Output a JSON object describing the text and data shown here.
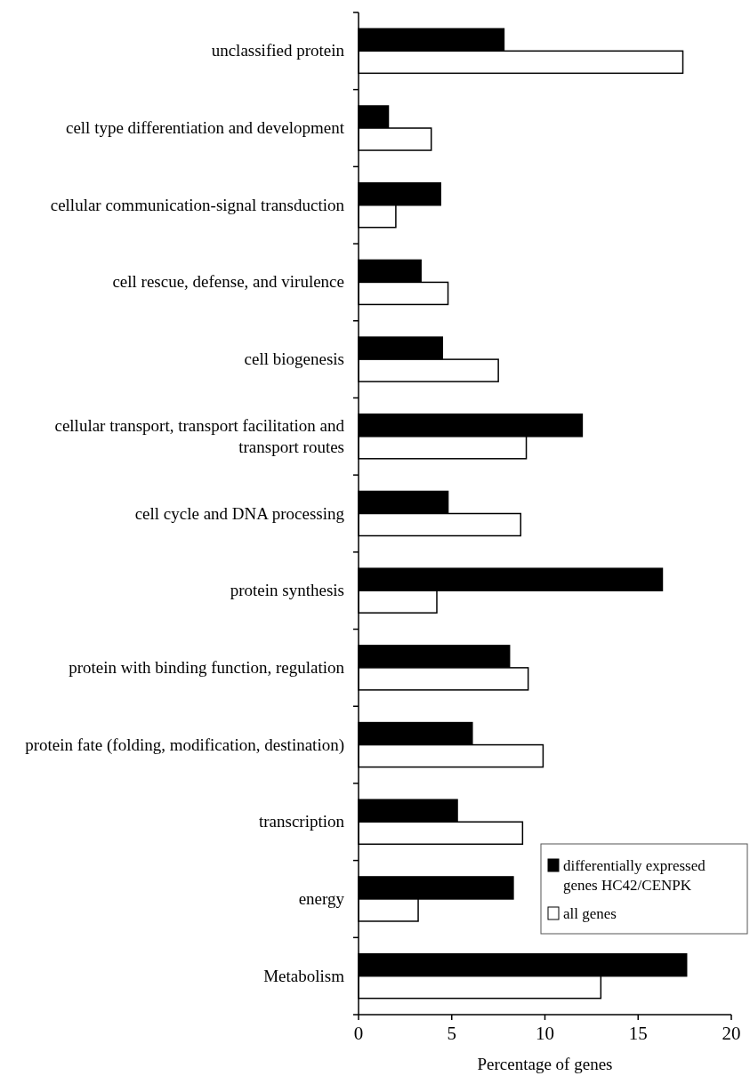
{
  "chart_data": {
    "type": "bar",
    "orientation": "horizontal",
    "xlabel": "Percentage of  genes",
    "categories": [
      "unclassified protein",
      "cell type differentiation and development",
      "cellular communication-signal transduction",
      "cell rescue, defense, and virulence",
      "cell biogenesis",
      "cellular transport, transport facilitation and transport routes",
      "cell cycle and DNA processing",
      "protein synthesis",
      "protein with binding function, regulation",
      "protein fate (folding, modification, destination)",
      "transcription",
      "energy",
      "Metabolism"
    ],
    "series": [
      {
        "name": "differentially expressed genes HC42/CENPK",
        "color": "#000000",
        "values": [
          7.8,
          1.6,
          4.4,
          3.35,
          4.5,
          12.0,
          4.8,
          16.3,
          8.1,
          6.1,
          5.3,
          8.3,
          17.6
        ]
      },
      {
        "name": "all genes",
        "color": "#ffffff",
        "values": [
          17.4,
          3.9,
          2.0,
          4.8,
          7.5,
          9.0,
          8.7,
          4.2,
          9.1,
          9.9,
          8.8,
          3.2,
          13.0
        ]
      }
    ],
    "xlim": [
      0,
      20
    ],
    "xticks": [
      0,
      5,
      10,
      15,
      20
    ],
    "legend": "bottom right",
    "grid": false
  }
}
